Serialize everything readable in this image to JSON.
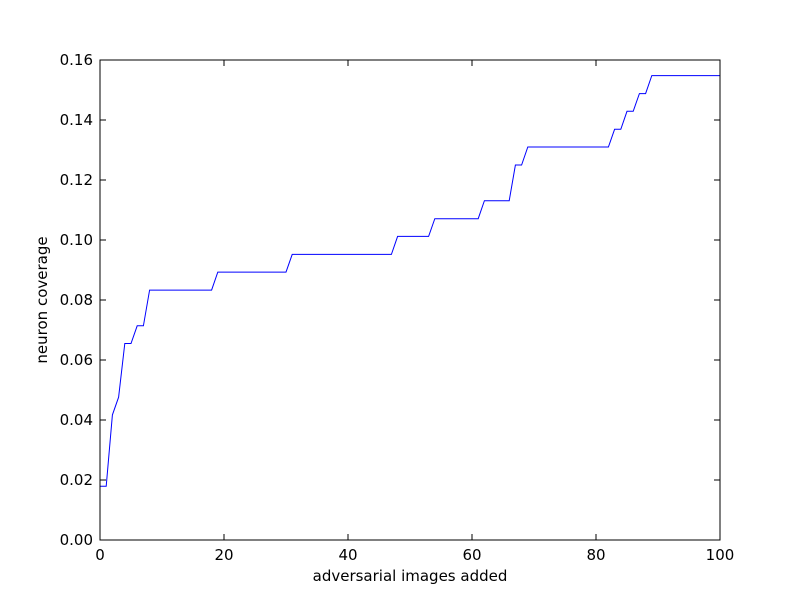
{
  "chart_data": {
    "type": "line",
    "title": "",
    "xlabel": "adversarial images added",
    "ylabel": "neuron coverage",
    "xlim": [
      0,
      100
    ],
    "ylim": [
      0,
      0.16
    ],
    "grid": false,
    "xticks": [
      0,
      20,
      40,
      60,
      80,
      100
    ],
    "xtick_labels": [
      "0",
      "20",
      "40",
      "60",
      "80",
      "100"
    ],
    "yticks": [
      0.0,
      0.02,
      0.04,
      0.06,
      0.08,
      0.1,
      0.12,
      0.14,
      0.16
    ],
    "ytick_labels": [
      "0.00",
      "0.02",
      "0.04",
      "0.06",
      "0.08",
      "0.10",
      "0.12",
      "0.14",
      "0.16"
    ],
    "series": [
      {
        "color": "#0000ff",
        "x": [
          0,
          1,
          2,
          3,
          4,
          5,
          6,
          7,
          8,
          9,
          10,
          11,
          12,
          13,
          14,
          15,
          16,
          17,
          18,
          19,
          20,
          21,
          22,
          23,
          24,
          25,
          26,
          27,
          28,
          29,
          30,
          31,
          32,
          33,
          34,
          35,
          36,
          37,
          38,
          39,
          40,
          41,
          42,
          43,
          44,
          45,
          46,
          47,
          48,
          49,
          50,
          51,
          52,
          53,
          54,
          55,
          56,
          57,
          58,
          59,
          60,
          61,
          62,
          63,
          64,
          65,
          66,
          67,
          68,
          69,
          70,
          71,
          72,
          73,
          74,
          75,
          76,
          77,
          78,
          79,
          80,
          81,
          82,
          83,
          84,
          85,
          86,
          87,
          88,
          89,
          90,
          91,
          92,
          93,
          94,
          95,
          96,
          97,
          98,
          99,
          100
        ],
        "y": [
          0.0179,
          0.0179,
          0.0417,
          0.0476,
          0.0655,
          0.0655,
          0.0714,
          0.0714,
          0.0833,
          0.0833,
          0.0833,
          0.0833,
          0.0833,
          0.0833,
          0.0833,
          0.0833,
          0.0833,
          0.0833,
          0.0833,
          0.0893,
          0.0893,
          0.0893,
          0.0893,
          0.0893,
          0.0893,
          0.0893,
          0.0893,
          0.0893,
          0.0893,
          0.0893,
          0.0893,
          0.0952,
          0.0952,
          0.0952,
          0.0952,
          0.0952,
          0.0952,
          0.0952,
          0.0952,
          0.0952,
          0.0952,
          0.0952,
          0.0952,
          0.0952,
          0.0952,
          0.0952,
          0.0952,
          0.0952,
          0.1012,
          0.1012,
          0.1012,
          0.1012,
          0.1012,
          0.1012,
          0.1071,
          0.1071,
          0.1071,
          0.1071,
          0.1071,
          0.1071,
          0.1071,
          0.1071,
          0.1131,
          0.1131,
          0.1131,
          0.1131,
          0.1131,
          0.125,
          0.125,
          0.131,
          0.131,
          0.131,
          0.131,
          0.131,
          0.131,
          0.131,
          0.131,
          0.131,
          0.131,
          0.131,
          0.131,
          0.131,
          0.131,
          0.1369,
          0.1369,
          0.1429,
          0.1429,
          0.1488,
          0.1488,
          0.1548,
          0.1548,
          0.1548,
          0.1548,
          0.1548,
          0.1548,
          0.1548,
          0.1548,
          0.1548,
          0.1548,
          0.1548,
          0.1548
        ]
      }
    ]
  }
}
